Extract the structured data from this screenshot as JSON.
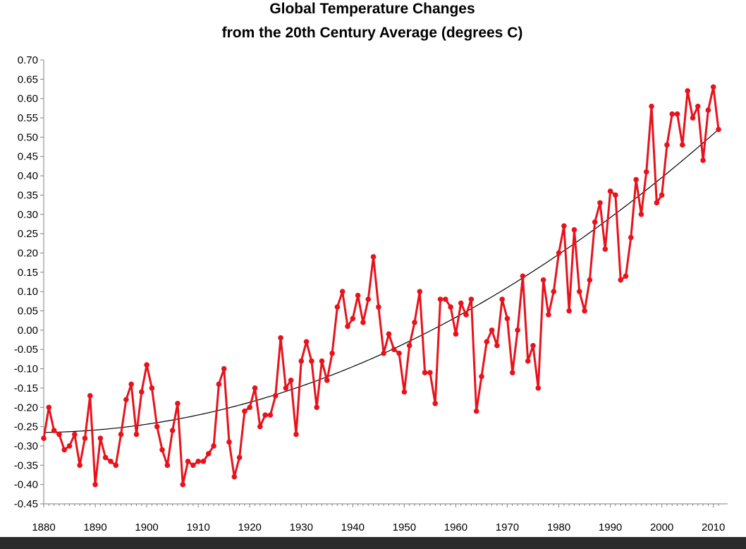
{
  "chart_data": {
    "type": "line",
    "title": "Global Temperature Changes",
    "subtitle": "from the 20th Century Average (degrees C)",
    "xlabel": "",
    "ylabel": "",
    "xlim": [
      1880,
      2011
    ],
    "ylim": [
      -0.45,
      0.7
    ],
    "grid": false,
    "legend": "none",
    "x_ticks": [
      "1880",
      "1890",
      "1900",
      "1910",
      "1920",
      "1930",
      "1940",
      "1950",
      "1960",
      "1970",
      "1980",
      "1990",
      "2000",
      "2010"
    ],
    "y_ticks": [
      "0.70",
      "0.65",
      "0.60",
      "0.55",
      "0.50",
      "0.45",
      "0.40",
      "0.35",
      "0.30",
      "0.25",
      "0.20",
      "0.15",
      "0.10",
      "0.05",
      "0.00",
      "-0.05",
      "-0.10",
      "-0.15",
      "-0.20",
      "-0.25",
      "-0.30",
      "-0.35",
      "-0.40",
      "-0.45"
    ],
    "colors": {
      "series": "#e8121c",
      "trend": "#000000"
    },
    "series": [
      {
        "x": [
          1880,
          1881,
          1882,
          1883,
          1884,
          1885,
          1886,
          1887,
          1888,
          1889,
          1890,
          1891,
          1892,
          1893,
          1894,
          1895,
          1896,
          1897,
          1898,
          1899,
          1900,
          1901,
          1902,
          1903,
          1904,
          1905,
          1906,
          1907,
          1908,
          1909,
          1910,
          1911,
          1912,
          1913,
          1914,
          1915,
          1916,
          1917,
          1918,
          1919,
          1920,
          1921,
          1922,
          1923,
          1924,
          1925,
          1926,
          1927,
          1928,
          1929,
          1930,
          1931,
          1932,
          1933,
          1934,
          1935,
          1936,
          1937,
          1938,
          1939,
          1940,
          1941,
          1942,
          1943,
          1944,
          1945,
          1946,
          1947,
          1948,
          1949,
          1950,
          1951,
          1952,
          1953,
          1954,
          1955,
          1956,
          1957,
          1958,
          1959,
          1960,
          1961,
          1962,
          1963,
          1964,
          1965,
          1966,
          1967,
          1968,
          1969,
          1970,
          1971,
          1972,
          1973,
          1974,
          1975,
          1976,
          1977,
          1978,
          1979,
          1980,
          1981,
          1982,
          1983,
          1984,
          1985,
          1986,
          1987,
          1988,
          1989,
          1990,
          1991,
          1992,
          1993,
          1994,
          1995,
          1996,
          1997,
          1998,
          1999,
          2000,
          2001,
          2002,
          2003,
          2004,
          2005,
          2006,
          2007,
          2008,
          2009,
          2010,
          2011
        ],
        "values": [
          -0.28,
          -0.2,
          -0.26,
          -0.27,
          -0.31,
          -0.3,
          -0.27,
          -0.35,
          -0.28,
          -0.17,
          -0.4,
          -0.28,
          -0.33,
          -0.34,
          -0.35,
          -0.27,
          -0.18,
          -0.14,
          -0.27,
          -0.16,
          -0.09,
          -0.15,
          -0.25,
          -0.31,
          -0.35,
          -0.26,
          -0.19,
          -0.4,
          -0.34,
          -0.35,
          -0.34,
          -0.34,
          -0.32,
          -0.3,
          -0.14,
          -0.1,
          -0.29,
          -0.38,
          -0.33,
          -0.21,
          -0.2,
          -0.15,
          -0.25,
          -0.22,
          -0.22,
          -0.17,
          -0.02,
          -0.15,
          -0.13,
          -0.27,
          -0.08,
          -0.03,
          -0.08,
          -0.2,
          -0.08,
          -0.13,
          -0.06,
          0.06,
          0.1,
          0.01,
          0.03,
          0.09,
          0.02,
          0.08,
          0.19,
          0.06,
          -0.06,
          -0.01,
          -0.05,
          -0.06,
          -0.16,
          -0.04,
          0.02,
          0.1,
          -0.11,
          -0.11,
          -0.19,
          0.08,
          0.08,
          0.06,
          -0.01,
          0.07,
          0.04,
          0.08,
          -0.21,
          -0.12,
          -0.03,
          0.0,
          -0.04,
          0.08,
          0.03,
          -0.11,
          0.0,
          0.14,
          -0.08,
          -0.04,
          -0.15,
          0.13,
          0.04,
          0.1,
          0.2,
          0.27,
          0.05,
          0.26,
          0.1,
          0.05,
          0.13,
          0.28,
          0.33,
          0.21,
          0.36,
          0.35,
          0.13,
          0.14,
          0.24,
          0.39,
          0.3,
          0.41,
          0.58,
          0.33,
          0.35,
          0.48,
          0.56,
          0.56,
          0.48,
          0.62,
          0.55,
          0.58,
          0.44,
          0.57,
          0.63,
          0.52
        ]
      }
    ],
    "trend": {
      "type": "quadratic",
      "points": [
        {
          "x": 1880,
          "y": -0.265
        },
        {
          "x": 1946,
          "y": -0.06
        },
        {
          "x": 2011,
          "y": 0.52
        }
      ]
    }
  }
}
